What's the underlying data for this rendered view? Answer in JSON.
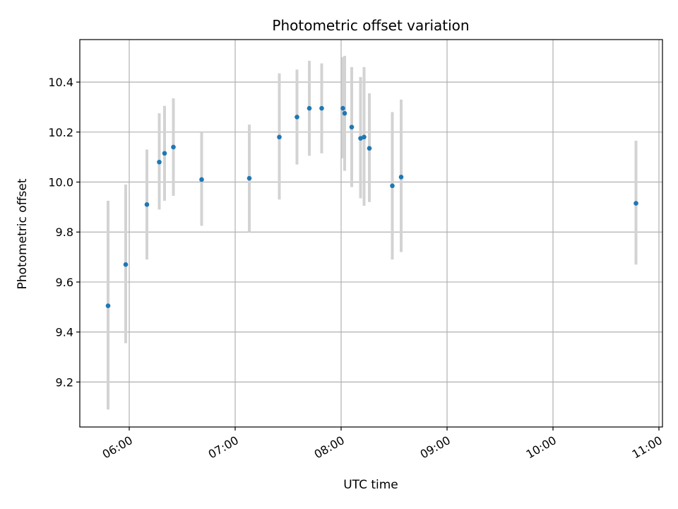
{
  "chart_data": {
    "type": "scatter",
    "title": "Photometric offset variation",
    "xlabel": "UTC time",
    "ylabel": "Photometric offset",
    "xlim": [
      "05:32",
      "11:02"
    ],
    "ylim": [
      9.02,
      10.57
    ],
    "x_ticks": [
      "06:00",
      "07:00",
      "08:00",
      "09:00",
      "10:00",
      "11:00"
    ],
    "y_ticks": [
      "9.2",
      "9.4",
      "9.6",
      "9.8",
      "10.0",
      "10.2",
      "10.4"
    ],
    "grid": true,
    "colors": {
      "points": "#1f77b4",
      "errorbars": "#d3d3d3",
      "grid": "#b0b0b0"
    },
    "series": [
      {
        "points": [
          {
            "x": "05:48",
            "y": 9.505,
            "low": 9.09,
            "high": 9.925
          },
          {
            "x": "05:58",
            "y": 9.67,
            "low": 9.355,
            "high": 9.99
          },
          {
            "x": "06:10",
            "y": 9.91,
            "low": 9.69,
            "high": 10.13
          },
          {
            "x": "06:17",
            "y": 10.08,
            "low": 9.89,
            "high": 10.275
          },
          {
            "x": "06:20",
            "y": 10.115,
            "low": 9.925,
            "high": 10.305
          },
          {
            "x": "06:25",
            "y": 10.14,
            "low": 9.945,
            "high": 10.335
          },
          {
            "x": "06:41",
            "y": 10.01,
            "low": 9.825,
            "high": 10.2
          },
          {
            "x": "07:08",
            "y": 10.015,
            "low": 9.8,
            "high": 10.23
          },
          {
            "x": "07:25",
            "y": 10.18,
            "low": 9.93,
            "high": 10.435
          },
          {
            "x": "07:35",
            "y": 10.26,
            "low": 10.07,
            "high": 10.45
          },
          {
            "x": "07:42",
            "y": 10.295,
            "low": 10.105,
            "high": 10.485
          },
          {
            "x": "07:49",
            "y": 10.295,
            "low": 10.115,
            "high": 10.475
          },
          {
            "x": "08:01",
            "y": 10.295,
            "low": 10.095,
            "high": 10.5
          },
          {
            "x": "08:02",
            "y": 10.275,
            "low": 10.045,
            "high": 10.505
          },
          {
            "x": "08:06",
            "y": 10.22,
            "low": 9.98,
            "high": 10.46
          },
          {
            "x": "08:11",
            "y": 10.175,
            "low": 9.935,
            "high": 10.42
          },
          {
            "x": "08:13",
            "y": 10.18,
            "low": 9.905,
            "high": 10.46
          },
          {
            "x": "08:16",
            "y": 10.135,
            "low": 9.92,
            "high": 10.355
          },
          {
            "x": "08:29",
            "y": 9.985,
            "low": 9.69,
            "high": 10.28
          },
          {
            "x": "08:34",
            "y": 10.02,
            "low": 9.72,
            "high": 10.33
          },
          {
            "x": "10:47",
            "y": 9.915,
            "low": 9.67,
            "high": 10.165
          }
        ]
      }
    ]
  }
}
